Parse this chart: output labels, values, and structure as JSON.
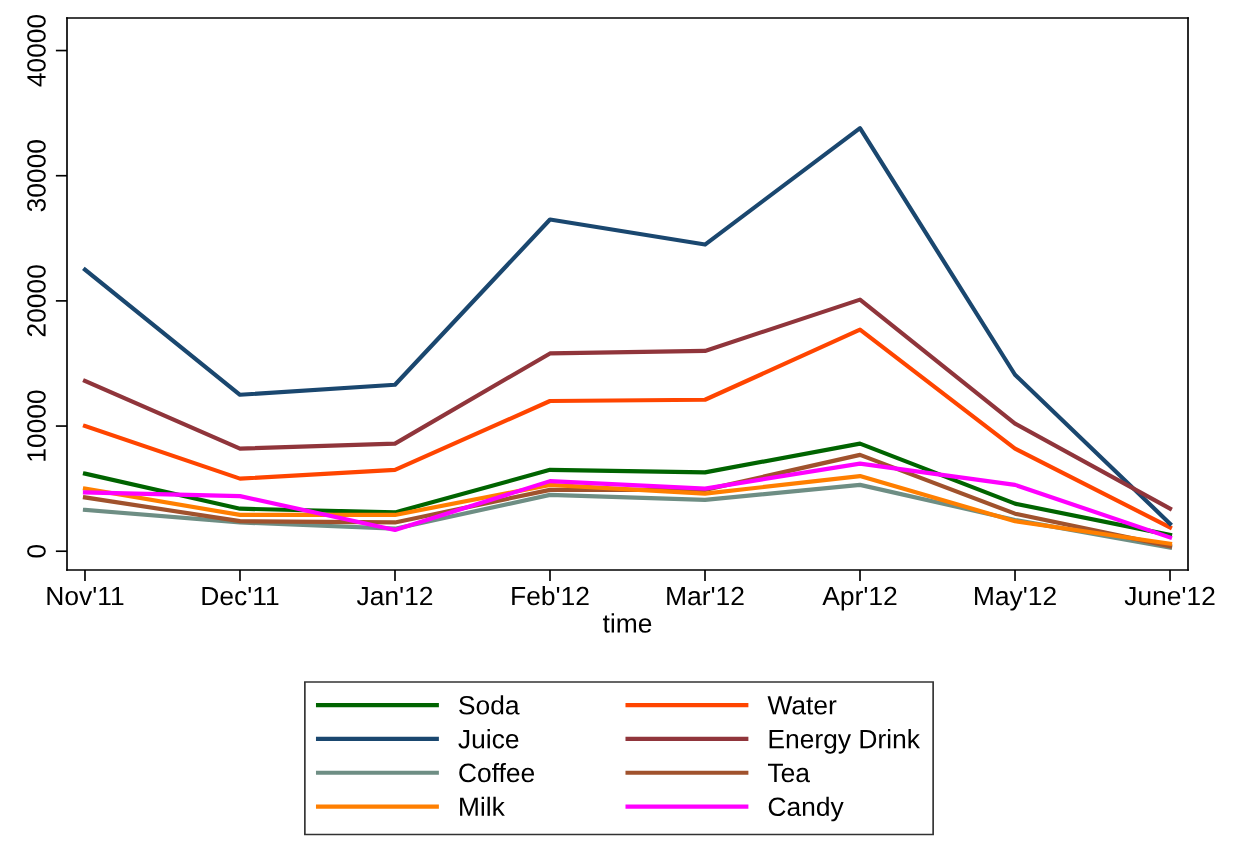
{
  "chart_data": {
    "type": "line",
    "xlabel": "time",
    "categories": [
      "Nov'11",
      "Dec'11",
      "Jan'12",
      "Feb'12",
      "Mar'12",
      "Apr'12",
      "May'12",
      "June'12"
    ],
    "series": [
      {
        "name": "Soda",
        "color": "#006400",
        "values": [
          6200,
          3400,
          3100,
          6500,
          6300,
          8600,
          3800,
          1300
        ]
      },
      {
        "name": "Water",
        "color": "#ff4500",
        "values": [
          10000,
          5800,
          6500,
          12000,
          12100,
          17700,
          8200,
          1900
        ]
      },
      {
        "name": "Juice",
        "color": "#1a476f",
        "values": [
          22500,
          12500,
          13300,
          26500,
          24500,
          33800,
          14100,
          2200
        ]
      },
      {
        "name": "Energy Drink",
        "color": "#90353b",
        "values": [
          13600,
          8200,
          8600,
          15800,
          16000,
          20100,
          10200,
          3400
        ]
      },
      {
        "name": "Coffee",
        "color": "#6e8e84",
        "values": [
          3300,
          2300,
          1800,
          4500,
          4100,
          5300,
          2500,
          300
        ]
      },
      {
        "name": "Tea",
        "color": "#a0522d",
        "values": [
          4300,
          2400,
          2300,
          4900,
          4900,
          7700,
          3000,
          400
        ]
      },
      {
        "name": "Milk",
        "color": "#ff7f00",
        "values": [
          5000,
          2900,
          2900,
          5300,
          4600,
          6000,
          2400,
          600
        ]
      },
      {
        "name": "Candy",
        "color": "#ff00ff",
        "values": [
          4700,
          4400,
          1700,
          5600,
          5000,
          7000,
          5300,
          1100
        ]
      }
    ],
    "ylim": [
      -1500,
      42600
    ],
    "yticks": [
      0,
      10000,
      20000,
      30000,
      40000
    ],
    "grid": false,
    "legend": "bottom",
    "marker": "none",
    "line_style": "solid"
  }
}
